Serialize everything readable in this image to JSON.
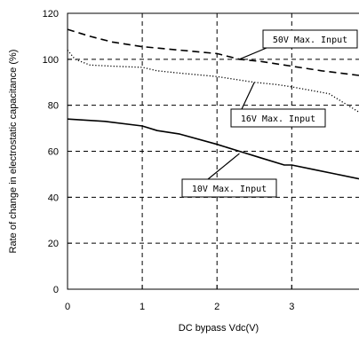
{
  "chart_data": {
    "type": "line",
    "xlabel": "DC bypass Vdc(V)",
    "ylabel": "Rate of change in electrostatic capacitance (%)",
    "xlim": [
      0,
      3.9
    ],
    "ylim": [
      0,
      120
    ],
    "x_ticks": [
      "0",
      "1",
      "2",
      "3"
    ],
    "y_ticks": [
      "0",
      "20",
      "40",
      "60",
      "80",
      "100",
      "120"
    ],
    "grid": true,
    "series": [
      {
        "name": "50V Max. Input",
        "style": "dashed",
        "x": [
          0,
          0.3,
          0.6,
          1.0,
          1.5,
          2.0,
          2.3,
          2.6,
          3.0,
          3.4,
          3.9
        ],
        "y": [
          113,
          110,
          107.5,
          105.5,
          104,
          102.5,
          100,
          99,
          97,
          95,
          93
        ]
      },
      {
        "name": "16V Max. Input",
        "style": "dotted",
        "x": [
          0,
          0.1,
          0.3,
          0.6,
          1.0,
          1.2,
          1.5,
          2.0,
          2.5,
          2.8,
          3.0,
          3.5,
          3.7,
          3.9
        ],
        "y": [
          104,
          100,
          97.5,
          97,
          96.5,
          95,
          94,
          92.5,
          90,
          89,
          88,
          85,
          81,
          77
        ]
      },
      {
        "name": "10V Max. Input",
        "style": "solid",
        "x": [
          0,
          0.5,
          1.0,
          1.2,
          1.5,
          2.0,
          2.3,
          2.6,
          2.9,
          3.0,
          3.3,
          3.6,
          3.9
        ],
        "y": [
          74,
          73,
          71,
          69,
          67.5,
          63,
          60,
          57,
          54,
          54,
          52,
          50,
          48
        ]
      }
    ],
    "annotations": [
      {
        "text": "50V Max. Input",
        "series": 0,
        "point": [
          2.3,
          100
        ]
      },
      {
        "text": "16V Max. Input",
        "series": 1,
        "point": [
          2.5,
          90
        ]
      },
      {
        "text": "10V Max. Input",
        "series": 2,
        "point": [
          2.3,
          59
        ]
      }
    ]
  }
}
